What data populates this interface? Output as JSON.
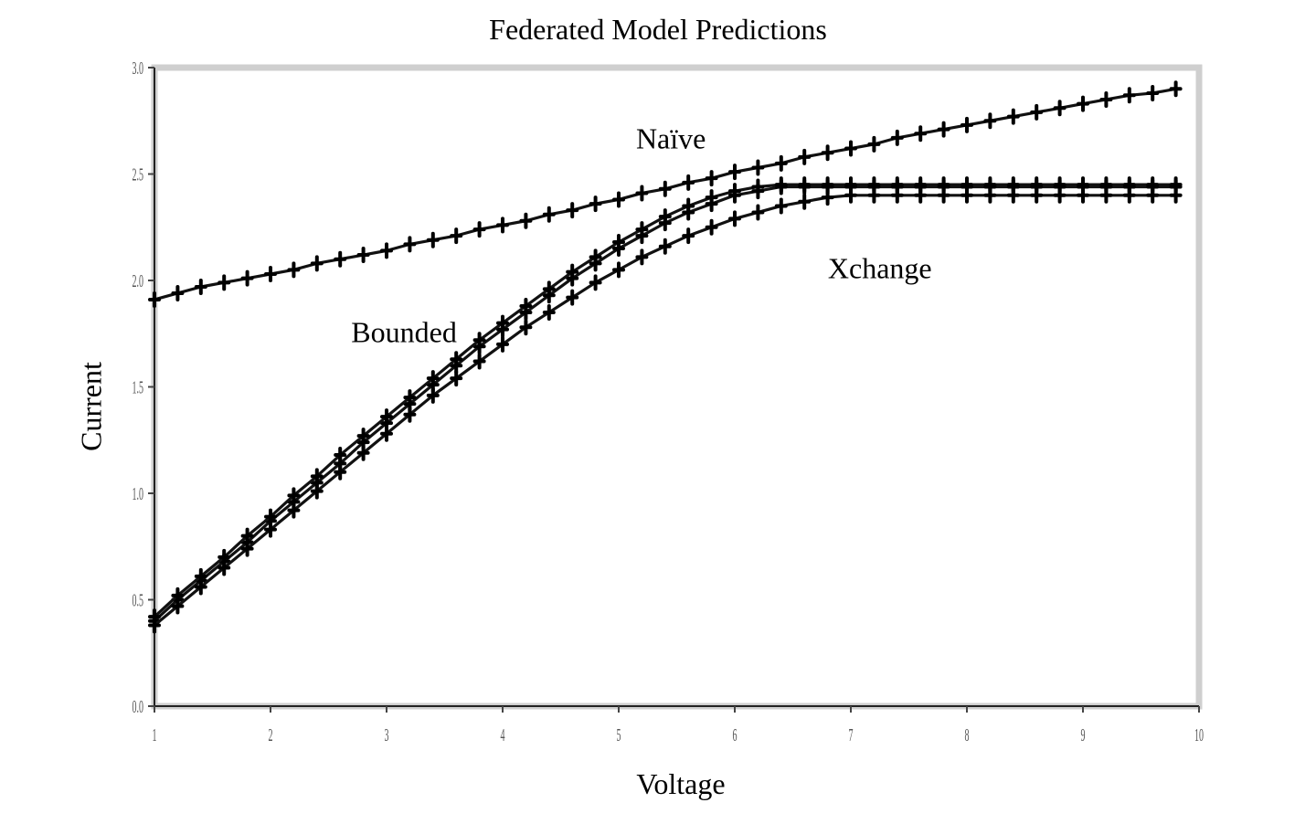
{
  "chart_data": {
    "type": "line",
    "title": "Federated Model Predictions",
    "xlabel": "Voltage",
    "ylabel": "Current",
    "xlim": [
      1,
      10
    ],
    "ylim": [
      0,
      3
    ],
    "xticks": [
      "1",
      "2",
      "3",
      "4",
      "5",
      "6",
      "7",
      "8",
      "9",
      "10"
    ],
    "yticks": [
      "0.0",
      "0.5",
      "1.0",
      "1.5",
      "2.0",
      "2.5",
      "3.0"
    ],
    "grid": false,
    "annotations": [
      {
        "text": "Naïve",
        "x": 5.45,
        "y": 2.62
      },
      {
        "text": "Xchange",
        "x": 7.25,
        "y": 2.01
      },
      {
        "text": "Bounded",
        "x": 3.15,
        "y": 1.71
      }
    ],
    "x": [
      1.0,
      1.2,
      1.4,
      1.6,
      1.8,
      2.0,
      2.2,
      2.4,
      2.6,
      2.8,
      3.0,
      3.2,
      3.4,
      3.6,
      3.8,
      4.0,
      4.2,
      4.4,
      4.6,
      4.8,
      5.0,
      5.2,
      5.4,
      5.6,
      5.8,
      6.0,
      6.2,
      6.4,
      6.6,
      6.8,
      7.0,
      7.2,
      7.4,
      7.6,
      7.8,
      8.0,
      8.2,
      8.4,
      8.6,
      8.8,
      9.0,
      9.2,
      9.4,
      9.6,
      9.8
    ],
    "series": [
      {
        "name": "Naïve",
        "values": [
          1.91,
          1.94,
          1.97,
          1.99,
          2.01,
          2.03,
          2.05,
          2.08,
          2.1,
          2.12,
          2.14,
          2.17,
          2.19,
          2.21,
          2.24,
          2.26,
          2.28,
          2.31,
          2.33,
          2.36,
          2.38,
          2.41,
          2.43,
          2.46,
          2.48,
          2.51,
          2.53,
          2.55,
          2.58,
          2.6,
          2.62,
          2.64,
          2.67,
          2.69,
          2.71,
          2.73,
          2.75,
          2.77,
          2.79,
          2.81,
          2.83,
          2.85,
          2.87,
          2.88,
          2.9
        ]
      },
      {
        "name": "Bounded",
        "values": [
          0.4,
          0.5,
          0.59,
          0.68,
          0.77,
          0.87,
          0.96,
          1.05,
          1.14,
          1.24,
          1.33,
          1.42,
          1.51,
          1.6,
          1.69,
          1.77,
          1.85,
          1.93,
          2.01,
          2.08,
          2.15,
          2.21,
          2.27,
          2.32,
          2.36,
          2.4,
          2.42,
          2.44,
          2.44,
          2.44,
          2.44,
          2.44,
          2.44,
          2.44,
          2.44,
          2.44,
          2.44,
          2.44,
          2.44,
          2.44,
          2.44,
          2.44,
          2.44,
          2.44,
          2.44
        ]
      },
      {
        "name": "Xchange",
        "values": [
          0.38,
          0.47,
          0.56,
          0.65,
          0.74,
          0.83,
          0.92,
          1.01,
          1.1,
          1.19,
          1.28,
          1.37,
          1.46,
          1.54,
          1.62,
          1.7,
          1.78,
          1.85,
          1.92,
          1.99,
          2.05,
          2.11,
          2.16,
          2.21,
          2.25,
          2.29,
          2.32,
          2.35,
          2.37,
          2.39,
          2.4,
          2.4,
          2.4,
          2.4,
          2.4,
          2.4,
          2.4,
          2.4,
          2.4,
          2.4,
          2.4,
          2.4,
          2.4,
          2.4,
          2.4
        ]
      },
      {
        "name": "",
        "values": [
          0.42,
          0.52,
          0.61,
          0.7,
          0.8,
          0.89,
          0.99,
          1.08,
          1.18,
          1.27,
          1.36,
          1.45,
          1.54,
          1.63,
          1.72,
          1.8,
          1.88,
          1.96,
          2.04,
          2.11,
          2.18,
          2.24,
          2.3,
          2.35,
          2.39,
          2.42,
          2.44,
          2.45,
          2.45,
          2.45,
          2.45,
          2.45,
          2.45,
          2.45,
          2.45,
          2.45,
          2.45,
          2.45,
          2.45,
          2.45,
          2.45,
          2.45,
          2.45,
          2.45,
          2.45
        ]
      }
    ]
  }
}
